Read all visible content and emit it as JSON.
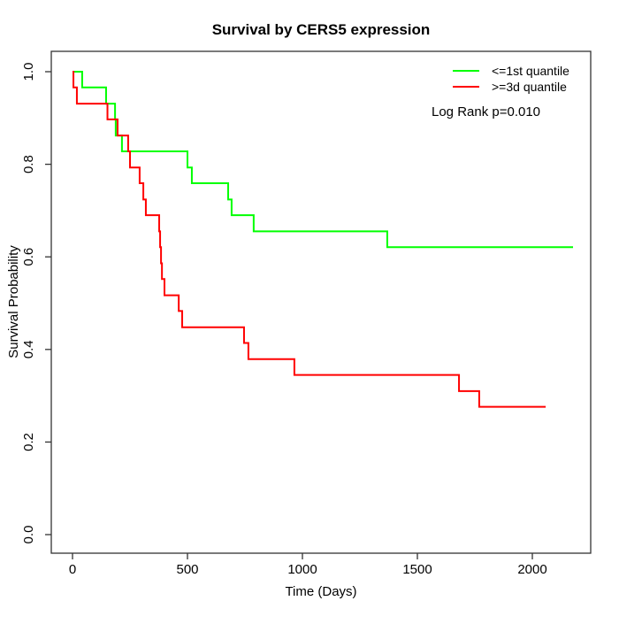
{
  "chart_data": {
    "type": "line",
    "subtype": "kaplan-meier-step",
    "title": "Survival by CERS5 expression",
    "xlabel": "Time (Days)",
    "ylabel": "Survival Probability",
    "xlim": [
      0,
      2180
    ],
    "ylim": [
      0.0,
      1.0
    ],
    "x_ticks": [
      "0",
      "500",
      "1000",
      "1500",
      "2000"
    ],
    "y_ticks": [
      "0.0",
      "0.2",
      "0.4",
      "0.6",
      "0.8",
      "1.0"
    ],
    "grid": false,
    "legend_position": "top-right",
    "annotation": "Log Rank p=0.010",
    "axis_color": "#333333",
    "legend": [
      {
        "label": "<=1st quantile",
        "color": "#00ff00"
      },
      {
        "label": ">=3d quantile",
        "color": "#ff0000"
      }
    ],
    "series": [
      {
        "name": "<=1st quantile",
        "color": "#00ff00",
        "end_time": 2177,
        "points": [
          [
            0,
            1.0
          ],
          [
            42,
            0.966
          ],
          [
            146,
            0.931
          ],
          [
            185,
            0.897
          ],
          [
            188,
            0.862
          ],
          [
            215,
            0.828
          ],
          [
            500,
            0.793
          ],
          [
            519,
            0.759
          ],
          [
            677,
            0.724
          ],
          [
            692,
            0.69
          ],
          [
            788,
            0.655
          ],
          [
            1369,
            0.621
          ]
        ]
      },
      {
        "name": ">=3d quantile",
        "color": "#ff0000",
        "end_time": 2058,
        "points": [
          [
            0,
            1.0
          ],
          [
            4,
            0.966
          ],
          [
            19,
            0.931
          ],
          [
            152,
            0.897
          ],
          [
            196,
            0.862
          ],
          [
            242,
            0.828
          ],
          [
            250,
            0.793
          ],
          [
            292,
            0.759
          ],
          [
            308,
            0.724
          ],
          [
            319,
            0.69
          ],
          [
            377,
            0.655
          ],
          [
            381,
            0.621
          ],
          [
            385,
            0.586
          ],
          [
            389,
            0.552
          ],
          [
            400,
            0.517
          ],
          [
            462,
            0.483
          ],
          [
            477,
            0.448
          ],
          [
            746,
            0.414
          ],
          [
            765,
            0.379
          ],
          [
            965,
            0.345
          ],
          [
            1681,
            0.31
          ],
          [
            1769,
            0.276
          ]
        ]
      }
    ]
  }
}
